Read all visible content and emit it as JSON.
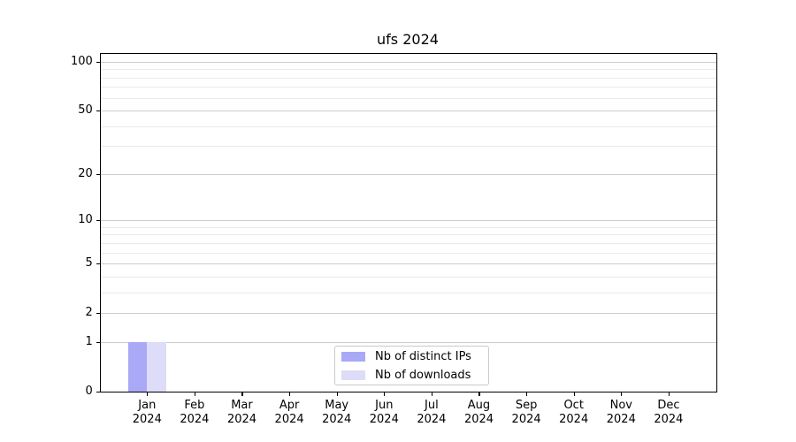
{
  "chart_data": {
    "type": "bar",
    "title": "ufs 2024",
    "x_ticks": [
      {
        "month": "Jan",
        "year": "2024"
      },
      {
        "month": "Feb",
        "year": "2024"
      },
      {
        "month": "Mar",
        "year": "2024"
      },
      {
        "month": "Apr",
        "year": "2024"
      },
      {
        "month": "May",
        "year": "2024"
      },
      {
        "month": "Jun",
        "year": "2024"
      },
      {
        "month": "Jul",
        "year": "2024"
      },
      {
        "month": "Aug",
        "year": "2024"
      },
      {
        "month": "Sep",
        "year": "2024"
      },
      {
        "month": "Oct",
        "year": "2024"
      },
      {
        "month": "Nov",
        "year": "2024"
      },
      {
        "month": "Dec",
        "year": "2024"
      }
    ],
    "series": [
      {
        "name": "Nb of distinct IPs",
        "color": "#a9a9f7",
        "values": [
          1,
          0,
          0,
          0,
          0,
          0,
          0,
          0,
          0,
          0,
          0,
          0
        ]
      },
      {
        "name": "Nb of downloads",
        "color": "#ddddf9",
        "values": [
          1,
          0,
          0,
          0,
          0,
          0,
          0,
          0,
          0,
          0,
          0,
          0
        ]
      }
    ],
    "y_axis": {
      "scale": "log(1+y)",
      "ylim": [
        0,
        100
      ],
      "major_ticks": [
        100,
        50,
        20,
        10,
        5,
        2,
        1,
        0
      ],
      "minor_ticks": [
        90,
        80,
        70,
        60,
        40,
        30,
        9,
        8,
        7,
        6,
        4,
        3
      ]
    },
    "grid": true,
    "legend_position": "lower center",
    "colors": {
      "grid_major": "#cdcdcd",
      "grid_minor": "#eaeaea",
      "axis": "#000000",
      "legend_border": "#c9c9c9"
    }
  }
}
